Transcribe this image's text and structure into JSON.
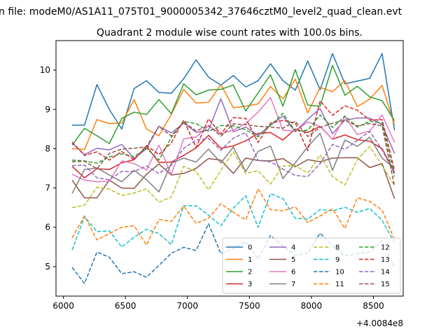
{
  "figure": {
    "suptitle": "n file: modeM0/AS1A11_075T01_9000005342_37646cztM0_level2_quad_clean.evt",
    "title": "Quadrant 2 module wise count rates with 100.0s bins.",
    "x_offset_label": "+4.0084e8"
  },
  "chart_data": {
    "type": "line",
    "title": "Quadrant 2 module wise count rates with 100.0s bins.",
    "xlabel": "",
    "ylabel": "",
    "x_offset": 400840000,
    "xlim": [
      5940,
      8740
    ],
    "ylim": [
      4.25,
      10.75
    ],
    "xticks": [
      6000,
      6500,
      7000,
      7500,
      8000,
      8500
    ],
    "xtick_labels": [
      "6000",
      "6500",
      "7000",
      "7500",
      "8000",
      "8500"
    ],
    "yticks": [
      5,
      6,
      7,
      8,
      9,
      10
    ],
    "ytick_labels": [
      "5",
      "6",
      "7",
      "8",
      "9",
      "10"
    ],
    "legend_position": "lower-right",
    "legend_columns": 4,
    "x": [
      6070,
      6170,
      6270,
      6370,
      6470,
      6570,
      6670,
      6770,
      6870,
      6970,
      7070,
      7170,
      7270,
      7370,
      7470,
      7570,
      7670,
      7770,
      7870,
      7970,
      8070,
      8170,
      8270,
      8370,
      8470,
      8570,
      8670
    ],
    "series": [
      {
        "name": "0",
        "color": "#1f77b4",
        "dash": "solid",
        "values": [
          8.6,
          8.6,
          9.63,
          9.0,
          8.5,
          9.53,
          9.73,
          9.43,
          9.41,
          9.78,
          10.26,
          9.82,
          9.62,
          9.86,
          9.57,
          9.73,
          10.16,
          9.73,
          9.49,
          10.23,
          9.5,
          10.42,
          9.65,
          9.72,
          9.79,
          10.42,
          8.47
        ]
      },
      {
        "name": "1",
        "color": "#ff7f0e",
        "dash": "solid",
        "values": [
          8.0,
          7.98,
          8.74,
          8.64,
          8.65,
          9.25,
          8.5,
          8.33,
          8.87,
          9.51,
          9.16,
          9.18,
          9.63,
          9.04,
          9.08,
          9.14,
          9.58,
          9.27,
          9.77,
          8.91,
          9.56,
          9.45,
          9.73,
          9.07,
          9.26,
          9.61,
          8.6
        ]
      },
      {
        "name": "2",
        "color": "#2ca02c",
        "dash": "solid",
        "values": [
          8.09,
          8.52,
          8.33,
          8.13,
          8.77,
          8.93,
          8.87,
          9.25,
          8.89,
          9.65,
          9.37,
          9.49,
          9.51,
          9.62,
          8.96,
          9.42,
          9.88,
          9.08,
          10.01,
          9.11,
          9.08,
          10.12,
          9.36,
          9.59,
          9.32,
          9.22,
          8.71
        ]
      },
      {
        "name": "3",
        "color": "#d62728",
        "dash": "solid",
        "values": [
          7.55,
          7.26,
          7.49,
          7.47,
          7.64,
          7.72,
          8.06,
          7.65,
          7.66,
          7.83,
          8.02,
          8.34,
          8.01,
          8.07,
          8.2,
          8.39,
          8.41,
          8.22,
          8.5,
          8.41,
          8.57,
          8.24,
          8.35,
          8.23,
          8.19,
          8.0,
          7.4
        ]
      },
      {
        "name": "4",
        "color": "#9467bd",
        "dash": "solid",
        "values": [
          8.14,
          7.85,
          8.01,
          7.97,
          8.11,
          7.75,
          8.0,
          8.57,
          8.4,
          8.65,
          8.42,
          8.47,
          9.27,
          8.43,
          8.55,
          8.34,
          8.6,
          8.83,
          8.43,
          8.75,
          9.02,
          8.38,
          8.73,
          8.78,
          8.78,
          8.61,
          7.88
        ]
      },
      {
        "name": "5",
        "color": "#8c564b",
        "dash": "solid",
        "values": [
          7.2,
          6.75,
          6.75,
          7.2,
          7.0,
          6.99,
          7.35,
          7.61,
          7.33,
          7.37,
          7.5,
          7.75,
          7.71,
          7.37,
          7.76,
          7.7,
          7.69,
          7.75,
          7.54,
          7.72,
          7.67,
          7.76,
          7.77,
          7.77,
          7.52,
          7.62,
          6.73
        ]
      },
      {
        "name": "6",
        "color": "#e377c2",
        "dash": "solid",
        "values": [
          7.35,
          7.2,
          7.16,
          7.17,
          7.69,
          7.62,
          7.46,
          8.09,
          7.34,
          8.25,
          8.3,
          8.58,
          8.38,
          8.47,
          8.64,
          8.93,
          9.3,
          8.47,
          8.45,
          8.68,
          8.57,
          8.24,
          8.82,
          8.36,
          8.45,
          8.86,
          8.16
        ]
      },
      {
        "name": "7",
        "color": "#7f7f7f",
        "dash": "solid",
        "values": [
          6.86,
          7.47,
          7.51,
          7.33,
          7.16,
          7.45,
          7.21,
          6.9,
          7.63,
          7.76,
          7.66,
          7.99,
          7.64,
          8.04,
          7.42,
          7.93,
          8.07,
          7.24,
          7.64,
          8.05,
          8.39,
          7.45,
          8.22,
          8.06,
          8.29,
          7.76,
          7.5
        ]
      },
      {
        "name": "8",
        "color": "#bcbd22",
        "dash": "dashed",
        "values": [
          6.5,
          6.56,
          7.02,
          6.97,
          6.81,
          6.87,
          6.98,
          6.64,
          6.77,
          7.55,
          7.42,
          6.95,
          7.45,
          7.92,
          7.37,
          7.44,
          7.1,
          7.56,
          7.57,
          7.38,
          7.84,
          7.29,
          7.08,
          7.72,
          8.06,
          7.57,
          7.06
        ]
      },
      {
        "name": "9",
        "color": "#17becf",
        "dash": "dashed",
        "values": [
          5.42,
          6.27,
          5.89,
          5.91,
          5.5,
          5.75,
          5.95,
          5.84,
          5.56,
          6.55,
          6.55,
          6.31,
          6.04,
          6.49,
          6.8,
          6.0,
          6.86,
          6.73,
          6.23,
          6.21,
          6.45,
          6.42,
          6.51,
          6.38,
          6.48,
          6.18,
          5.6
        ]
      },
      {
        "name": "10",
        "color": "#1f77b4",
        "dash": "dashed",
        "values": [
          4.98,
          4.57,
          5.37,
          5.24,
          4.82,
          4.87,
          4.73,
          5.03,
          5.34,
          5.49,
          5.41,
          6.09,
          5.33,
          5.46,
          5.64,
          5.19,
          5.79,
          5.53,
          5.28,
          5.35,
          5.85,
          5.53,
          5.27,
          5.33,
          5.37,
          5.66,
          4.98
        ]
      },
      {
        "name": "11",
        "color": "#ff7f0e",
        "dash": "dashed",
        "values": [
          5.73,
          6.29,
          5.68,
          5.84,
          6.0,
          6.04,
          5.55,
          6.2,
          6.15,
          6.54,
          6.1,
          6.23,
          6.6,
          6.38,
          6.19,
          6.98,
          6.45,
          6.42,
          6.52,
          6.12,
          6.29,
          6.47,
          5.97,
          6.75,
          6.66,
          6.44,
          5.68
        ]
      },
      {
        "name": "12",
        "color": "#2ca02c",
        "dash": "dashed",
        "values": [
          7.71,
          7.69,
          7.63,
          7.79,
          7.87,
          7.8,
          8.01,
          7.71,
          8.29,
          8.69,
          8.64,
          8.44,
          8.59,
          8.58,
          8.48,
          8.3,
          8.59,
          8.9,
          8.45,
          8.47,
          8.86,
          8.54,
          8.83,
          8.55,
          8.7,
          8.66,
          7.29
        ]
      },
      {
        "name": "13",
        "color": "#d62728",
        "dash": "dashed",
        "values": [
          8.17,
          7.83,
          7.92,
          7.71,
          7.93,
          7.72,
          8.08,
          7.85,
          8.15,
          8.73,
          8.03,
          8.76,
          8.37,
          8.79,
          8.77,
          8.16,
          8.65,
          8.72,
          8.65,
          7.95,
          9.22,
          8.85,
          9.09,
          8.98,
          8.73,
          8.74,
          7.44
        ]
      },
      {
        "name": "14",
        "color": "#9467bd",
        "dash": "dashed",
        "values": [
          7.57,
          7.58,
          7.26,
          7.21,
          7.42,
          7.42,
          7.56,
          7.37,
          7.58,
          8.01,
          8.22,
          8.26,
          7.96,
          8.27,
          8.41,
          7.7,
          7.67,
          7.48,
          7.32,
          7.29,
          7.62,
          8.11,
          7.98,
          8.21,
          8.44,
          7.97,
          7.37
        ]
      },
      {
        "name": "15",
        "color": "#8c564b",
        "dash": "dashed",
        "values": [
          7.67,
          7.68,
          7.49,
          7.88,
          7.99,
          8.01,
          8.05,
          8.57,
          8.32,
          8.68,
          8.45,
          8.59,
          8.32,
          8.63,
          8.61,
          8.57,
          8.55,
          8.52,
          8.7,
          8.31,
          8.54,
          8.65,
          8.72,
          8.58,
          8.64,
          8.58,
          7.05
        ]
      }
    ]
  }
}
